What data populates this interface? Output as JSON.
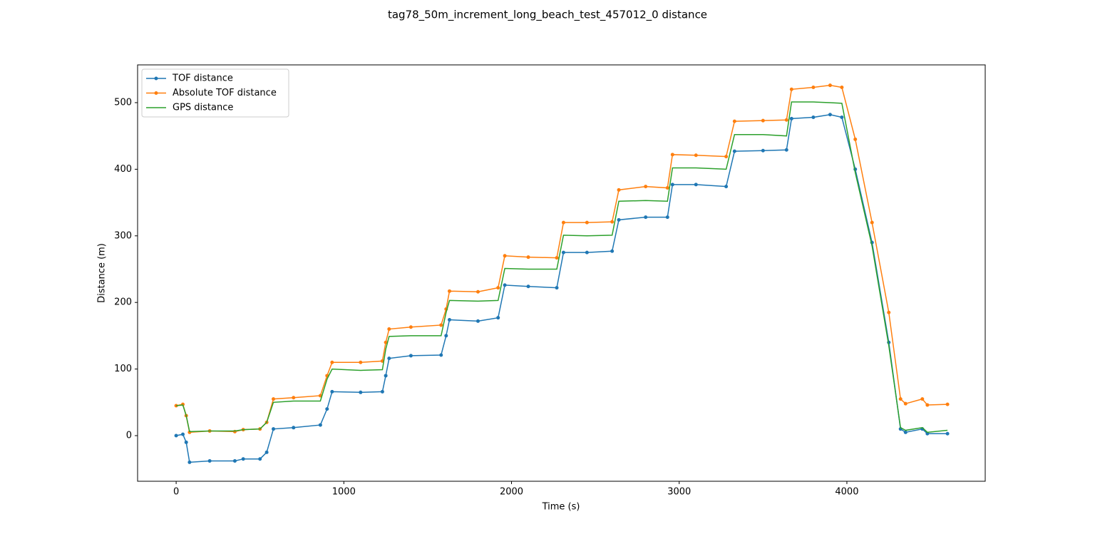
{
  "chart_data": {
    "type": "line",
    "title": "tag78_50m_increment_long_beach_test_457012_0 distance",
    "xlabel": "Time (s)",
    "ylabel": "Distance (m)",
    "x": [
      0,
      40,
      60,
      80,
      200,
      350,
      400,
      500,
      540,
      580,
      700,
      860,
      900,
      930,
      1100,
      1230,
      1250,
      1270,
      1400,
      1580,
      1610,
      1630,
      1800,
      1920,
      1960,
      2100,
      2270,
      2310,
      2450,
      2600,
      2640,
      2800,
      2930,
      2960,
      3100,
      3280,
      3330,
      3500,
      3640,
      3670,
      3800,
      3900,
      3970,
      4050,
      4150,
      4250,
      4320,
      4350,
      4450,
      4480,
      4600
    ],
    "series": [
      {
        "name": "TOF distance",
        "color": "#1f77b4",
        "marker": true,
        "values": [
          0,
          2,
          -10,
          -40,
          -38,
          -38,
          -35,
          -35,
          -25,
          10,
          12,
          16,
          40,
          66,
          65,
          66,
          90,
          116,
          120,
          121,
          150,
          174,
          172,
          177,
          226,
          224,
          222,
          275,
          275,
          277,
          324,
          328,
          328,
          377,
          377,
          374,
          427,
          428,
          429,
          476,
          478,
          482,
          478,
          400,
          290,
          140,
          10,
          5,
          10,
          3,
          3
        ]
      },
      {
        "name": "Absolute TOF distance",
        "color": "#ff7f0e",
        "marker": true,
        "values": [
          45,
          47,
          30,
          5,
          7,
          6,
          9,
          10,
          20,
          55,
          57,
          60,
          90,
          110,
          110,
          112,
          140,
          160,
          163,
          166,
          190,
          217,
          216,
          222,
          270,
          268,
          267,
          320,
          320,
          321,
          369,
          374,
          372,
          422,
          421,
          419,
          472,
          473,
          474,
          520,
          523,
          526,
          523,
          445,
          320,
          185,
          55,
          48,
          55,
          46,
          47
        ]
      },
      {
        "name": "GPS distance",
        "color": "#2ca02c",
        "marker": false,
        "values": [
          45,
          46,
          30,
          6,
          7,
          7,
          9,
          10,
          20,
          50,
          52,
          52,
          85,
          100,
          98,
          99,
          130,
          149,
          150,
          150,
          185,
          203,
          202,
          203,
          251,
          250,
          250,
          301,
          300,
          301,
          352,
          353,
          352,
          402,
          402,
          400,
          452,
          452,
          450,
          501,
          501,
          500,
          499,
          395,
          285,
          135,
          12,
          8,
          12,
          5,
          8
        ]
      }
    ],
    "xlim": [
      -230,
      4825
    ],
    "ylim": [
      -68.5,
      556.7
    ],
    "xticks": [
      0,
      1000,
      2000,
      3000,
      4000
    ],
    "yticks": [
      0,
      100,
      200,
      300,
      400,
      500
    ],
    "legend": "upper left",
    "grid": false
  }
}
